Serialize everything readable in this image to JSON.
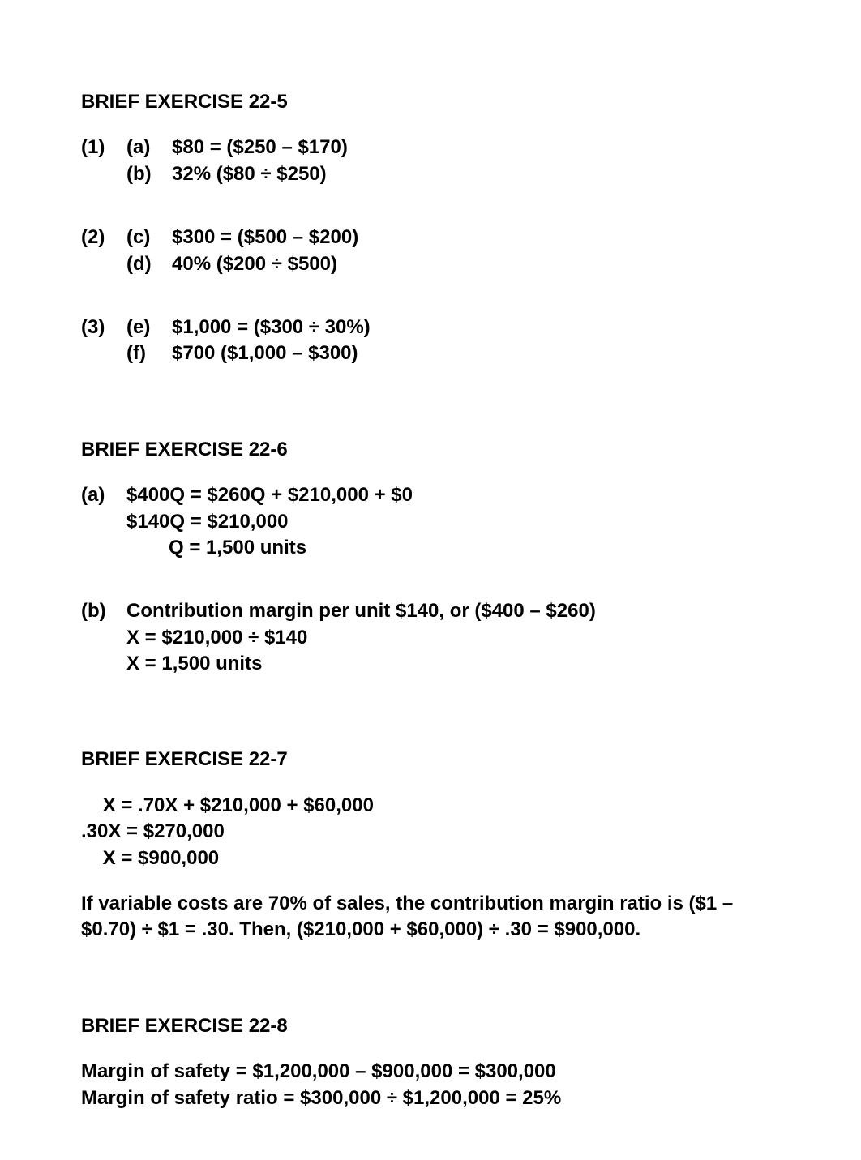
{
  "doc": {
    "text_color": "#000000",
    "background_color": "#ffffff",
    "font_family": "Arial",
    "font_weight": "bold",
    "font_size_pt": 18
  },
  "ex5": {
    "title": "BRIEF EXERCISE 22-5",
    "items": [
      {
        "num": "(1)",
        "sub": "(a)",
        "text": "$80 = ($250 – $170)"
      },
      {
        "num": "",
        "sub": "(b)",
        "text": "32% ($80 ÷ $250)"
      },
      {
        "num": "(2)",
        "sub": "(c)",
        "text": "$300 = ($500 – $200)"
      },
      {
        "num": "",
        "sub": "(d)",
        "text": "40% ($200 ÷ $500)"
      },
      {
        "num": "(3)",
        "sub": "(e)",
        "text": "$1,000 = ($300 ÷ 30%)"
      },
      {
        "num": "",
        "sub": "(f)",
        "text": "$700 ($1,000 – $300)"
      }
    ]
  },
  "ex6": {
    "title": "BRIEF EXERCISE 22-6",
    "a": {
      "label": "(a)",
      "line1": " $400Q = $260Q + $210,000 + $0",
      "line2": "$140Q = $210,000",
      "line3": "Q = 1,500 units"
    },
    "b": {
      "label": "(b)",
      "line1": "Contribution margin per unit $140, or ($400 – $260)",
      "line2": "X = $210,000 ÷ $140",
      "line3": "X = 1,500 units"
    }
  },
  "ex7": {
    "title": "BRIEF EXERCISE 22-7",
    "eq1": "    X = .70X + $210,000 + $60,000",
    "eq2": ".30X = $270,000",
    "eq3": "    X = $900,000",
    "para": "If variable costs are 70% of sales, the contribution margin ratio is ($1 – $0.70) ÷ $1 = .30. Then, ($210,000 + $60,000) ÷ .30 = $900,000."
  },
  "ex8": {
    "title": "BRIEF EXERCISE 22-8",
    "line1": "Margin of safety = $1,200,000 – $900,000 = $300,000",
    "line2": "Margin of safety ratio = $300,000 ÷ $1,200,000 = 25%"
  }
}
